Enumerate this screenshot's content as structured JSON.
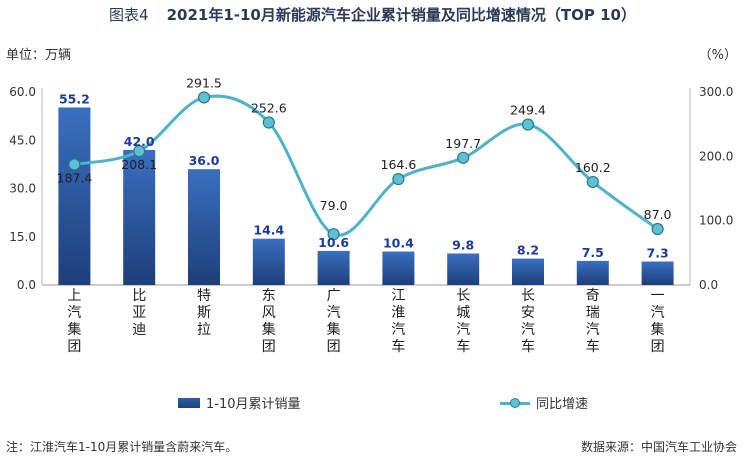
{
  "title": {
    "figure_label": "图表4",
    "text": "2021年1-10月新能源汽车企业累计销量及同比增速情况（TOP 10）"
  },
  "units": {
    "left": "单位：万辆",
    "right": "（%）"
  },
  "footer": {
    "note": "注：江淮汽车1-10月累计销量含蔚来汽车。",
    "source": "数据来源：中国汽车工业协会"
  },
  "legend": {
    "bar_label": "1-10月累计销量",
    "line_label": "同比增速"
  },
  "colors": {
    "bar": "#2f5ea8",
    "line": "#4fb3c8",
    "bar_label": "#1f3a9c"
  },
  "chart_data": {
    "type": "bar",
    "categories": [
      "上汽集团",
      "比亚迪",
      "特斯拉",
      "东风集团",
      "广汽集团",
      "江淮汽车",
      "长城汽车",
      "长安汽车",
      "奇瑞汽车",
      "一汽集团"
    ],
    "series": [
      {
        "name": "1-10月累计销量",
        "type": "bar",
        "axis": "left",
        "values": [
          55.2,
          42.0,
          36.0,
          14.4,
          10.6,
          10.4,
          9.8,
          8.2,
          7.5,
          7.3
        ]
      },
      {
        "name": "同比增速",
        "type": "line",
        "axis": "right",
        "values": [
          187.4,
          208.1,
          291.5,
          252.6,
          79.0,
          164.6,
          197.7,
          249.4,
          160.2,
          87.0
        ]
      }
    ],
    "y_left": {
      "ylim": [
        0,
        60
      ],
      "ticks": [
        "0.0",
        "15.0",
        "30.0",
        "45.0",
        "60.0"
      ]
    },
    "y_right": {
      "ylim": [
        0,
        300
      ],
      "ticks": [
        "0.0",
        "100.0",
        "200.0",
        "300.0"
      ]
    },
    "legend_position": "bottom"
  }
}
